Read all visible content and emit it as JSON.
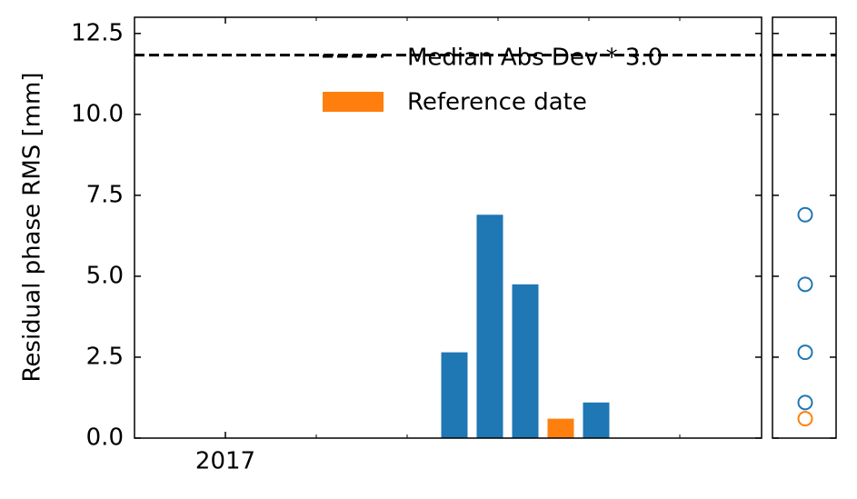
{
  "chart_data": {
    "type": "bar",
    "ylabel": "Residual phase RMS [mm]",
    "x": [
      2017.63,
      2017.7275,
      2017.825,
      2017.9225,
      2018.02
    ],
    "values": [
      2.65,
      6.9,
      4.75,
      0.6,
      1.1
    ],
    "bar_colors": [
      "#1f77b4",
      "#1f77b4",
      "#1f77b4",
      "#ff7f0e",
      "#1f77b4"
    ],
    "xlim": [
      2016.75,
      2018.475
    ],
    "xticks": [
      2017
    ],
    "xminor_ticks": [
      2017.25,
      2017.5,
      2017.75,
      2018,
      2018.25
    ],
    "ylim": [
      0,
      13
    ],
    "yticks": [
      0.0,
      2.5,
      5.0,
      7.5,
      10.0,
      12.5
    ],
    "ytick_labels": [
      "0.0",
      "2.5",
      "5.0",
      "7.5",
      "10.0",
      "12.5"
    ],
    "threshold": {
      "value": 11.83,
      "label": "Median Abs Dev * 3.0",
      "color": "#000000"
    },
    "reference": {
      "label": "Reference date",
      "color": "#ff7f0e"
    },
    "legend": "upper center",
    "side_panel": "scatter"
  }
}
